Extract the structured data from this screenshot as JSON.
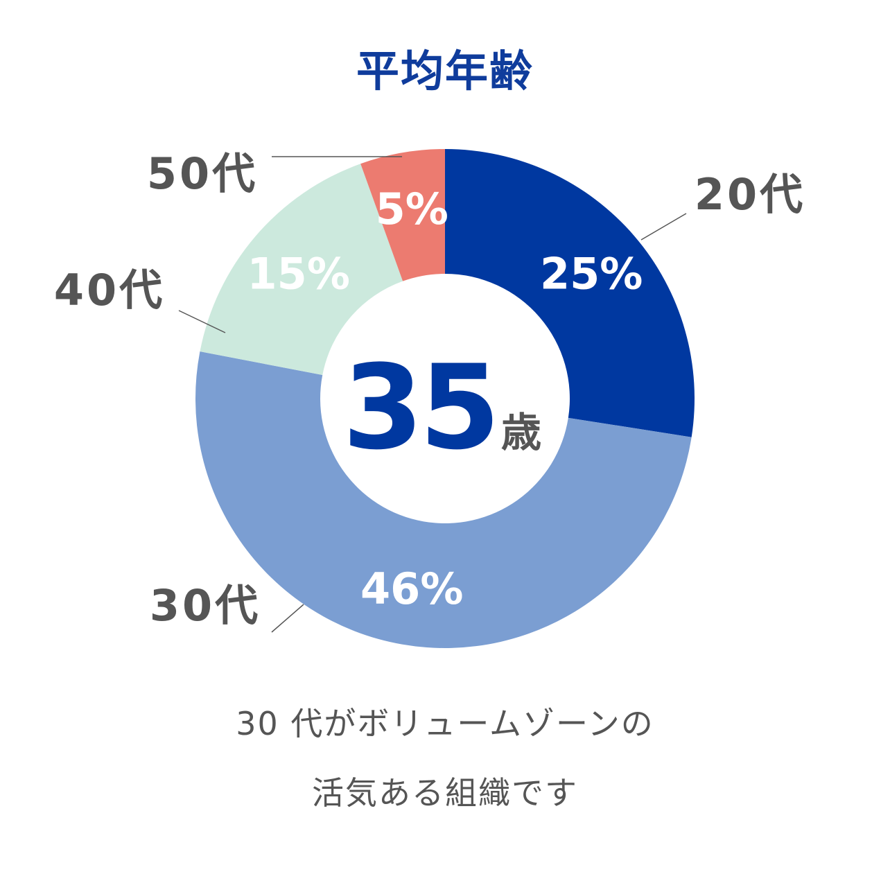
{
  "chart_data": {
    "type": "pie",
    "title": "平均年齢",
    "categories": [
      "20代",
      "30代",
      "40代",
      "50代"
    ],
    "values": [
      25,
      46,
      15,
      5
    ],
    "value_labels": [
      "25%",
      "46%",
      "15%",
      "5%"
    ],
    "colors": [
      "#0038a0",
      "#7b9ed2",
      "#cce9dd",
      "#ec7b70"
    ],
    "value_label_colors": [
      "#ffffff",
      "#ffffff",
      "#ffffff",
      "#ffffff"
    ],
    "donut": true,
    "start": "top",
    "direction": "clockwise",
    "center_label": {
      "value": "35",
      "unit": "歳",
      "value_color": "#0038a0",
      "unit_color": "#555555"
    }
  },
  "caption": {
    "line1": "30 代がボリュームゾーンの",
    "line2": "活気ある組織です"
  }
}
